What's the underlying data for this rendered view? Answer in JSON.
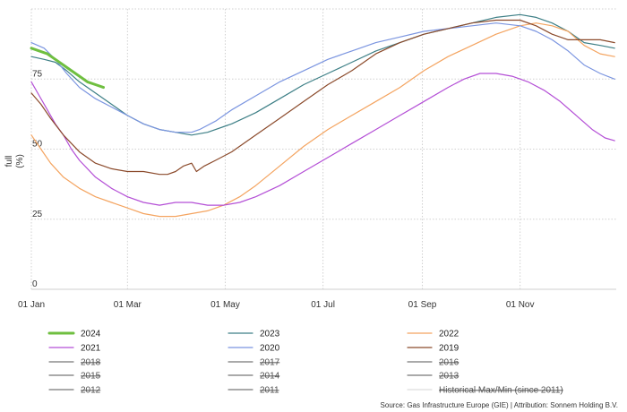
{
  "chart_data": {
    "type": "line",
    "title": "",
    "xlabel": "",
    "ylabel": "full (%)",
    "ylabel_parts": [
      "full",
      "(%)"
    ],
    "xlim": [
      0,
      365
    ],
    "ylim": [
      0,
      100
    ],
    "x_unit": "day of year",
    "grid": true,
    "y_ticks": [
      {
        "value": 0,
        "label": "0"
      },
      {
        "value": 25,
        "label": "25"
      },
      {
        "value": 50,
        "label": "50"
      },
      {
        "value": 75,
        "label": "75"
      },
      {
        "value": 100,
        "label": ""
      }
    ],
    "x_ticks": [
      {
        "value": 0,
        "label": "01 Jan"
      },
      {
        "value": 60,
        "label": "01 Mar"
      },
      {
        "value": 121,
        "label": "01 May"
      },
      {
        "value": 182,
        "label": "01 Jul"
      },
      {
        "value": 244,
        "label": "01 Sep"
      },
      {
        "value": 305,
        "label": "01 Nov"
      }
    ],
    "series": [
      {
        "name": "2024",
        "color": "#6fbf40",
        "width": 3,
        "x": [
          0,
          5,
          10,
          15,
          20,
          25,
          30,
          35,
          40,
          45
        ],
        "y": [
          86,
          85,
          84,
          82,
          80,
          78,
          76,
          74,
          73,
          72
        ]
      },
      {
        "name": "2023",
        "color": "#3d7f86",
        "width": 1.2,
        "x": [
          0,
          8,
          15,
          22,
          30,
          40,
          50,
          60,
          70,
          80,
          90,
          100,
          110,
          125,
          140,
          155,
          170,
          185,
          200,
          215,
          230,
          245,
          260,
          275,
          290,
          305,
          315,
          325,
          335,
          345,
          355,
          364
        ],
        "y": [
          83,
          82,
          81,
          78,
          74,
          70,
          66,
          62,
          59,
          57,
          56,
          55,
          56,
          59,
          63,
          68,
          73,
          77,
          81,
          85,
          88,
          91,
          93,
          95,
          97,
          98,
          97,
          95,
          92,
          88,
          87,
          86
        ]
      },
      {
        "name": "2022",
        "color": "#f4a460",
        "width": 1.2,
        "x": [
          0,
          6,
          12,
          20,
          30,
          40,
          50,
          60,
          70,
          80,
          90,
          100,
          110,
          120,
          130,
          140,
          155,
          170,
          185,
          200,
          215,
          230,
          245,
          260,
          275,
          290,
          305,
          315,
          325,
          335,
          345,
          355,
          364
        ],
        "y": [
          55,
          50,
          45,
          40,
          36,
          33,
          31,
          29,
          27,
          26,
          26,
          27,
          28,
          30,
          33,
          37,
          44,
          51,
          57,
          62,
          67,
          72,
          78,
          83,
          87,
          91,
          94,
          95,
          94,
          92,
          87,
          84,
          83
        ]
      },
      {
        "name": "2021",
        "color": "#b44fd6",
        "width": 1.2,
        "x": [
          0,
          5,
          10,
          15,
          20,
          25,
          30,
          40,
          50,
          60,
          70,
          80,
          90,
          100,
          110,
          120,
          130,
          140,
          155,
          170,
          185,
          200,
          215,
          230,
          245,
          260,
          270,
          280,
          290,
          300,
          310,
          320,
          330,
          340,
          350,
          358,
          364
        ],
        "y": [
          74,
          69,
          64,
          59,
          55,
          50,
          46,
          40,
          36,
          33,
          31,
          30,
          31,
          31,
          30,
          30,
          31,
          33,
          37,
          42,
          47,
          52,
          57,
          62,
          67,
          72,
          75,
          77,
          77,
          76,
          74,
          71,
          67,
          62,
          57,
          54,
          53
        ]
      },
      {
        "name": "2020",
        "color": "#7b95e0",
        "width": 1.2,
        "x": [
          0,
          8,
          15,
          22,
          30,
          40,
          50,
          60,
          70,
          80,
          90,
          100,
          105,
          115,
          125,
          140,
          155,
          170,
          185,
          200,
          215,
          230,
          245,
          260,
          275,
          290,
          305,
          315,
          325,
          335,
          345,
          355,
          364
        ],
        "y": [
          88,
          86,
          82,
          77,
          72,
          68,
          65,
          62,
          59,
          57,
          56,
          56,
          57,
          60,
          64,
          69,
          74,
          78,
          82,
          85,
          88,
          90,
          92,
          93,
          94,
          95,
          94,
          92,
          89,
          85,
          80,
          77,
          75
        ]
      },
      {
        "name": "2019",
        "color": "#8b4a2b",
        "width": 1.2,
        "x": [
          0,
          6,
          12,
          20,
          30,
          40,
          50,
          60,
          70,
          80,
          85,
          90,
          95,
          100,
          103,
          108,
          115,
          125,
          140,
          155,
          170,
          185,
          200,
          215,
          230,
          245,
          260,
          275,
          290,
          305,
          315,
          325,
          335,
          345,
          355,
          364
        ],
        "y": [
          70,
          66,
          61,
          55,
          49,
          45,
          43,
          42,
          42,
          41,
          41,
          42,
          44,
          45,
          42,
          44,
          46,
          49,
          55,
          61,
          67,
          73,
          78,
          84,
          88,
          91,
          93,
          95,
          96,
          96,
          94,
          91,
          89,
          89,
          89,
          88
        ]
      }
    ]
  },
  "legend": {
    "rows": [
      [
        {
          "label": "2024",
          "color": "#6fbf40",
          "width": 3,
          "struck": false
        },
        {
          "label": "2023",
          "color": "#3d7f86",
          "width": 1.2,
          "struck": false
        },
        {
          "label": "2022",
          "color": "#f4a460",
          "width": 1.2,
          "struck": false
        }
      ],
      [
        {
          "label": "2021",
          "color": "#b44fd6",
          "width": 1.2,
          "struck": false
        },
        {
          "label": "2020",
          "color": "#7b95e0",
          "width": 1.2,
          "struck": false
        },
        {
          "label": "2019",
          "color": "#8b4a2b",
          "width": 1.2,
          "struck": false
        }
      ],
      [
        {
          "label": "2018",
          "color": "#777777",
          "width": 1.2,
          "struck": true
        },
        {
          "label": "2017",
          "color": "#777777",
          "width": 1.2,
          "struck": true
        },
        {
          "label": "2016",
          "color": "#777777",
          "width": 1.2,
          "struck": true
        }
      ],
      [
        {
          "label": "2015",
          "color": "#777777",
          "width": 1.2,
          "struck": true
        },
        {
          "label": "2014",
          "color": "#777777",
          "width": 1.2,
          "struck": true
        },
        {
          "label": "2013",
          "color": "#777777",
          "width": 1.2,
          "struck": true
        }
      ],
      [
        {
          "label": "2012",
          "color": "#777777",
          "width": 1.2,
          "struck": true
        },
        {
          "label": "2011",
          "color": "#777777",
          "width": 1.2,
          "struck": true
        },
        {
          "label": "Historical Max/Min (since 2011)",
          "color": "#dddddd",
          "width": 1.2,
          "struck": true
        }
      ]
    ]
  },
  "source_text": "Source: Gas Infrastructure Europe (GIE) | Attribution: Sonnem Holding B.V."
}
